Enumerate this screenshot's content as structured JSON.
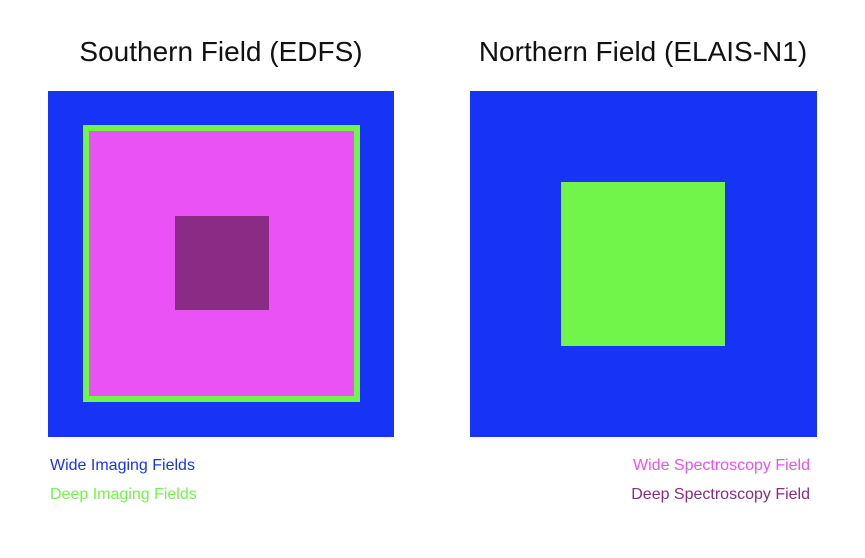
{
  "titles": {
    "south": "Southern Field (EDFS)",
    "north": "Northern Field (ELAIS-N1)"
  },
  "legend": {
    "wide_imaging": "Wide Imaging Fields",
    "deep_imaging": "Deep Imaging Fields",
    "wide_spectroscopy": "Wide Spectroscopy Field",
    "deep_spectroscopy": "Deep Spectroscopy Field"
  },
  "colors": {
    "wide_imaging": "#1733f5",
    "deep_imaging": "#72f54a",
    "wide_spectroscopy": "#ea52f5",
    "deep_spectroscopy": "#8a2b85"
  }
}
